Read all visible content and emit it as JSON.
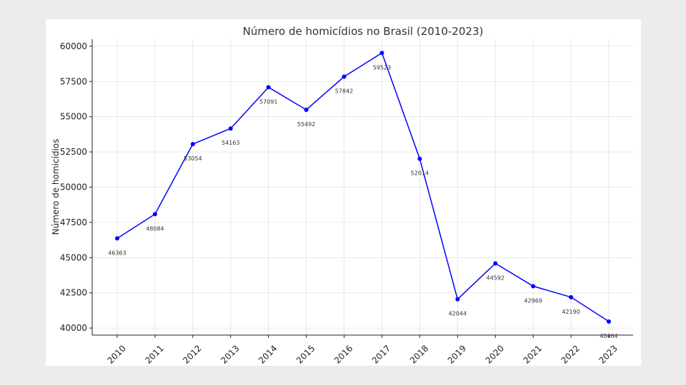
{
  "chart_data": {
    "type": "line",
    "title": "Número de homicídios no Brasil (2010-2023)",
    "xlabel": "",
    "ylabel": "Número de homicídios",
    "x": [
      "2010",
      "2011",
      "2012",
      "2013",
      "2014",
      "2015",
      "2016",
      "2017",
      "2018",
      "2019",
      "2020",
      "2021",
      "2022",
      "2023"
    ],
    "values": [
      46363,
      48084,
      53054,
      54163,
      57091,
      55492,
      57842,
      59523,
      52014,
      42044,
      44592,
      42969,
      42190,
      40464
    ],
    "data_labels": [
      "46363",
      "48084",
      "53054",
      "54163",
      "57091",
      "55492",
      "57842",
      "59523",
      "52014",
      "42044",
      "44592",
      "42969",
      "42190",
      "40464"
    ],
    "yticks": [
      "40000",
      "42500",
      "45000",
      "47500",
      "50000",
      "52500",
      "55000",
      "57500",
      "60000"
    ],
    "ytick_values": [
      40000,
      42500,
      45000,
      47500,
      50000,
      52500,
      55000,
      57500,
      60000
    ],
    "ylim": [
      39500,
      60500
    ],
    "grid": true,
    "line_color": "#0000ff",
    "marker_color": "#0000ff"
  }
}
